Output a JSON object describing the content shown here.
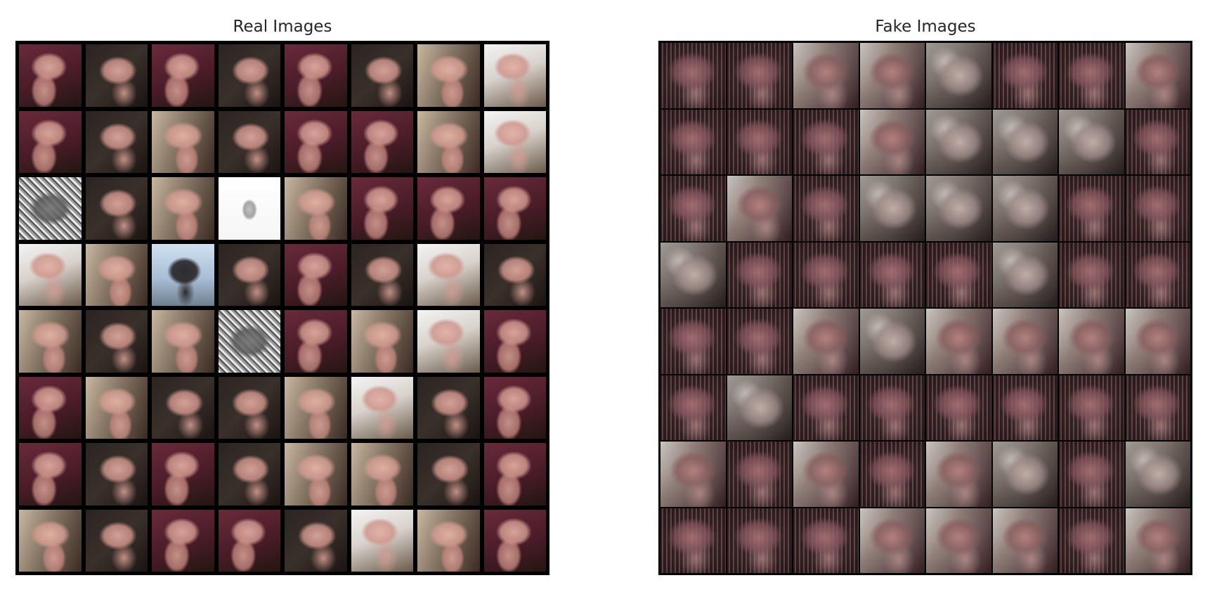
{
  "panels": {
    "real": {
      "title": "Real Images",
      "rows": 8,
      "cols": 8
    },
    "fake": {
      "title": "Fake Images",
      "rows": 8,
      "cols": 8
    }
  },
  "colors": {
    "background": "#ffffff",
    "grid_border": "#000000",
    "title_text": "#262626"
  }
}
